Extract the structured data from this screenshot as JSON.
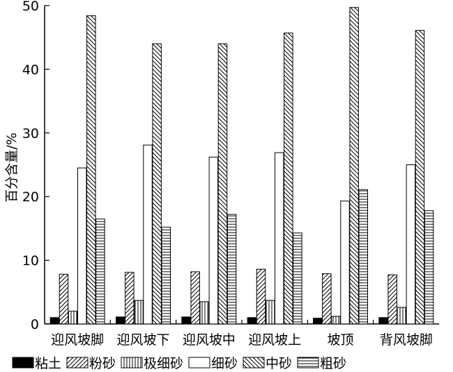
{
  "chart_data": {
    "type": "bar",
    "ylabel": "百分含量/%",
    "xlabel": "",
    "ylim": [
      0,
      50
    ],
    "yticks": [
      0,
      10,
      20,
      30,
      40,
      50
    ],
    "grid": false,
    "legend_position": "bottom",
    "categories": [
      "迎风坡脚",
      "迎风坡下",
      "迎风坡中",
      "迎风坡上",
      "坡顶",
      "背风坡脚"
    ],
    "series": [
      {
        "name": "粘土",
        "pattern": "solid",
        "values": [
          1.0,
          1.1,
          1.1,
          1.0,
          0.9,
          1.0
        ]
      },
      {
        "name": "粉砂",
        "pattern": "diag-up",
        "values": [
          7.8,
          8.1,
          8.2,
          8.6,
          7.9,
          7.7
        ]
      },
      {
        "name": "极细砂",
        "pattern": "vertical",
        "values": [
          2.0,
          3.7,
          3.5,
          3.7,
          1.2,
          2.6
        ]
      },
      {
        "name": "细砂",
        "pattern": "blank",
        "values": [
          24.5,
          28.1,
          26.2,
          26.9,
          19.3,
          25.0
        ]
      },
      {
        "name": "中砂",
        "pattern": "diag-down",
        "values": [
          48.4,
          44.0,
          44.0,
          45.7,
          49.7,
          46.1
        ]
      },
      {
        "name": "粗砂",
        "pattern": "horizontal",
        "values": [
          16.5,
          15.2,
          17.2,
          14.3,
          21.1,
          17.8
        ]
      }
    ]
  }
}
